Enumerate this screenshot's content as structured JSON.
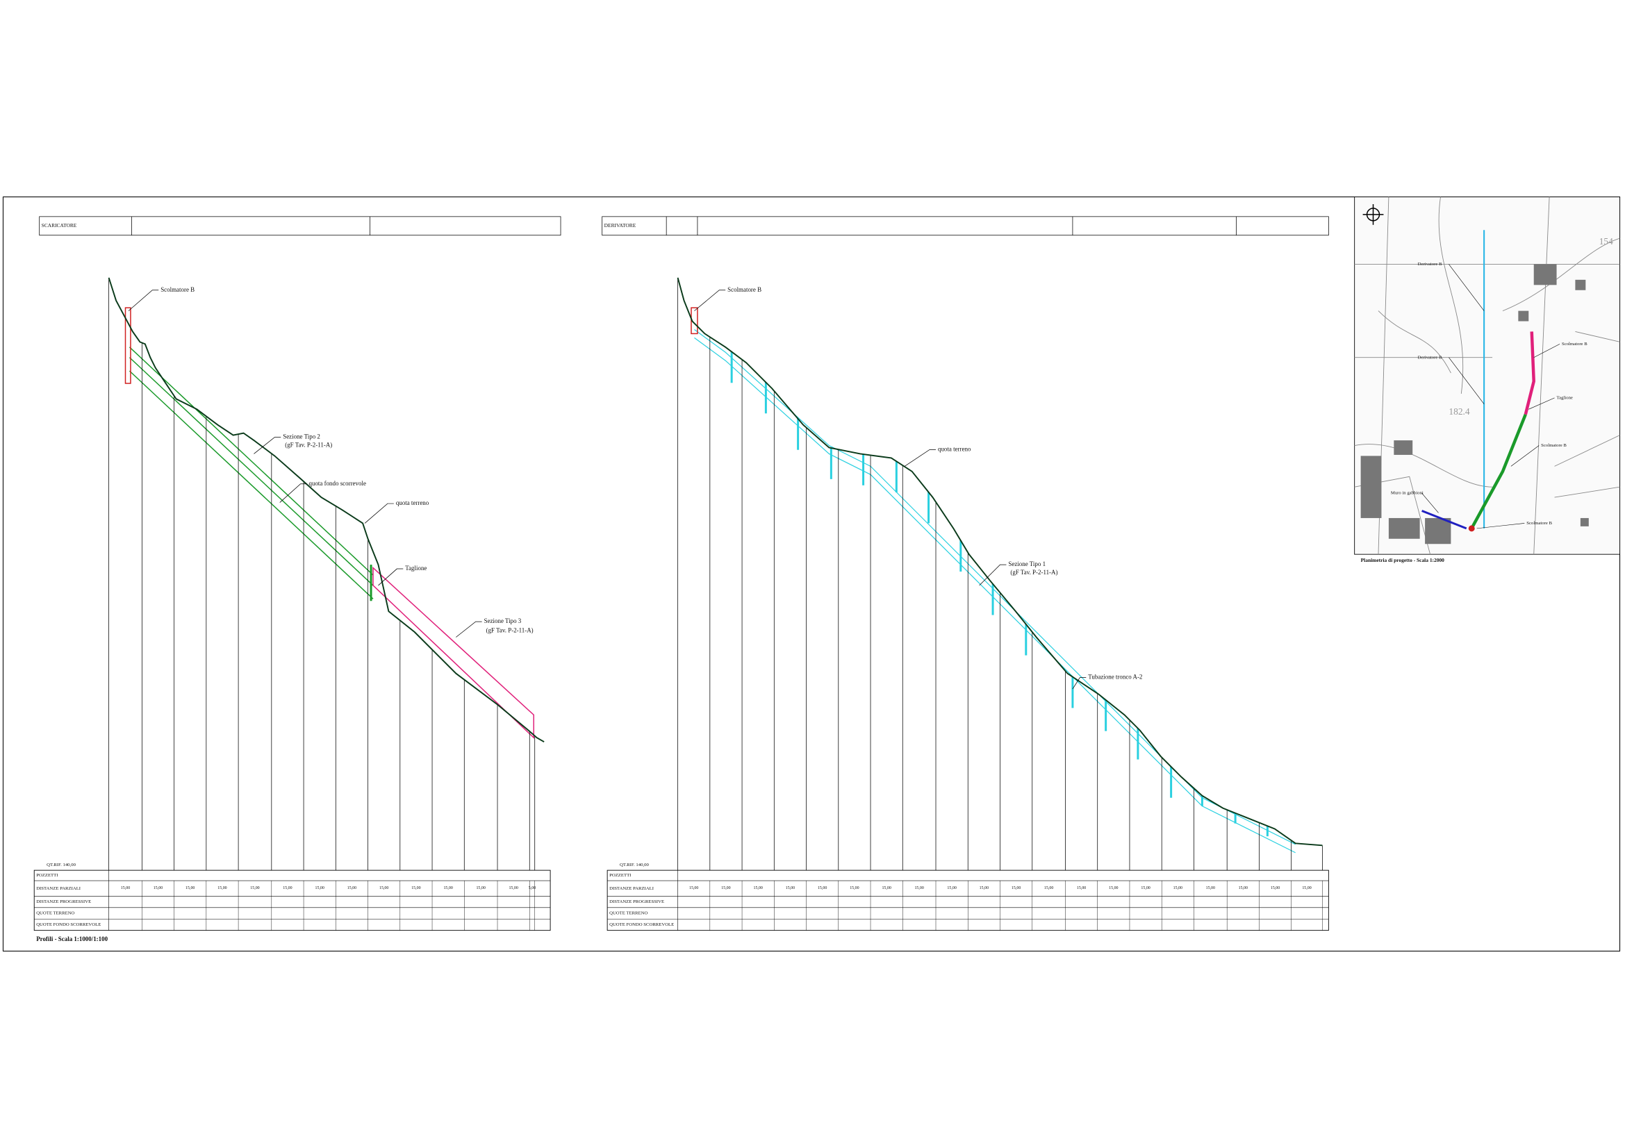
{
  "left_profile": {
    "header": "SCARICATORE",
    "datum": "QT.RIF. 140,00",
    "labels": [
      "Scolmatore B",
      "Sezione Tipo 2",
      "(gF Tav. P-2-11-A)",
      "quota fondo scorrevole",
      "quota terreno",
      "Taglione",
      "Sezione Tipo 3",
      "(gF Tav. P-2-11-A)"
    ],
    "table": {
      "rows": [
        "POZZETTI",
        "DISTANZE PARZIALI",
        "DISTANZE PROGRESSIVE",
        "QUOTE TERRENO",
        "QUOTE FONDO SCORREVOLE"
      ],
      "partial_distances": [
        "15,00",
        "15,00",
        "15,00",
        "15,00",
        "15,00",
        "15,00",
        "15,00",
        "15,00",
        "15,00",
        "15,00",
        "15,00",
        "15,00",
        "15,00",
        "5,00"
      ]
    },
    "caption": "Profili - Scala 1:1000/1:100"
  },
  "right_profile": {
    "header": "DERIVATORE",
    "datum": "QT.RIF. 140,00",
    "labels": [
      "Scolmatore B",
      "quota terreno",
      "Sezione Tipo 1",
      "(gF Tav. P-2-11-A)",
      "Tubazione tronco A-2"
    ],
    "table": {
      "rows": [
        "POZZETTI",
        "DISTANZE PARZIALI",
        "DISTANZE PROGRESSIVE",
        "QUOTE TERRENO",
        "QUOTE FONDO SCORREVOLE"
      ],
      "partial_distances": [
        "15,00",
        "15,00",
        "15,00",
        "15,00",
        "15,00",
        "15,00",
        "15,00",
        "15,00",
        "15,00",
        "15,00",
        "15,00",
        "15,00",
        "15,00",
        "15,00",
        "15,00",
        "15,00",
        "15,00",
        "15,00",
        "15,00",
        "15,00"
      ]
    }
  },
  "map": {
    "labels": [
      "Derivatore B",
      "Derivatore B",
      "Scolmatore B",
      "Taglione",
      "Scolmatore B",
      "Muro in gabbioni",
      "Scolmatore B",
      "154",
      "182.4"
    ],
    "caption": "Planimetria di progetto - Scala 1:2000"
  }
}
